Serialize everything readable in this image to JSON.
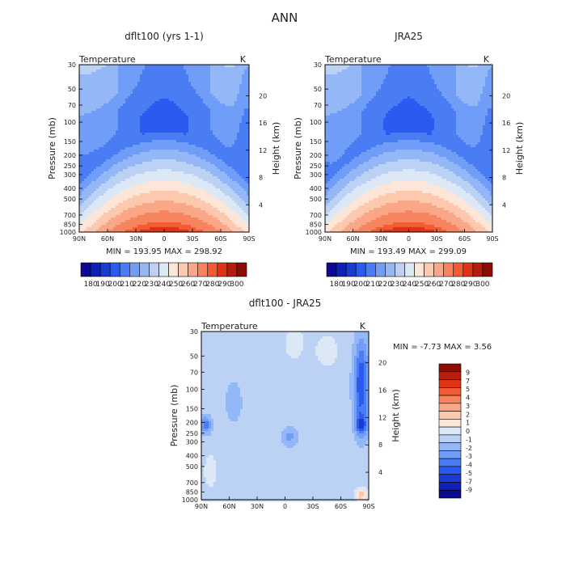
{
  "title": "ANN",
  "colors": {
    "temp_palette": [
      "#0a0a8c",
      "#1020b4",
      "#1a3ad2",
      "#2a5af0",
      "#4a7cf4",
      "#6f9df7",
      "#94b8f7",
      "#bcd2f5",
      "#dde8f7",
      "#fde6d8",
      "#fcc8ae",
      "#faa788",
      "#f7835f",
      "#f25b35",
      "#df3414",
      "#b51e0c",
      "#8c0c06"
    ],
    "diff_palette": [
      "#0a0a8c",
      "#1020b4",
      "#1a3ad2",
      "#2a5af0",
      "#4a7cf4",
      "#6f9df7",
      "#94b8f7",
      "#bcd2f5",
      "#dde8f7",
      "#fde6d8",
      "#fcc8ae",
      "#faa788",
      "#f7835f",
      "#f25b35",
      "#df3414",
      "#b51e0c",
      "#8c0c06"
    ]
  },
  "panels": [
    {
      "id": "model",
      "title": "dflt100 (yrs 1-1)",
      "subtitle": "Temperature",
      "units": "K",
      "left_axis_label": "Pressure (mb)",
      "right_axis_label": "Height (km)",
      "pressure_ticks": [
        "30",
        "50",
        "70",
        "100",
        "150",
        "200",
        "250",
        "300",
        "400",
        "500",
        "700",
        "850",
        "1000"
      ],
      "height_ticks": [
        "20",
        "16",
        "12",
        "8",
        "4"
      ],
      "lat_ticks": [
        "90N",
        "60N",
        "30N",
        "0",
        "30S",
        "60S",
        "90S"
      ],
      "stats": "MIN = 193.95   MAX = 298.92"
    },
    {
      "id": "obs",
      "title": "JRA25",
      "subtitle": "Temperature",
      "units": "K",
      "left_axis_label": "Pressure (mb)",
      "right_axis_label": "Height (km)",
      "pressure_ticks": [
        "30",
        "50",
        "70",
        "100",
        "150",
        "200",
        "250",
        "300",
        "400",
        "500",
        "700",
        "850",
        "1000"
      ],
      "height_ticks": [
        "20",
        "16",
        "12",
        "8",
        "4"
      ],
      "lat_ticks": [
        "90N",
        "60N",
        "30N",
        "0",
        "30S",
        "60S",
        "90S"
      ],
      "stats": "MIN = 193.49   MAX = 299.09"
    },
    {
      "id": "diff",
      "title": "dflt100 - JRA25",
      "subtitle": "Temperature",
      "units": "K",
      "left_axis_label": "Pressure (mb)",
      "right_axis_label": "Height (km)",
      "pressure_ticks": [
        "30",
        "50",
        "70",
        "100",
        "150",
        "200",
        "250",
        "300",
        "400",
        "500",
        "700",
        "850",
        "1000"
      ],
      "height_ticks": [
        "20",
        "16",
        "12",
        "8",
        "4"
      ],
      "lat_ticks": [
        "90N",
        "60N",
        "30N",
        "0",
        "30S",
        "60S",
        "90S"
      ],
      "stats": "MIN =  -7.73   MAX =    3.56"
    }
  ],
  "temp_colorbar_labels": [
    "180",
    "190",
    "200",
    "210",
    "220",
    "230",
    "240",
    "250",
    "260",
    "270",
    "280",
    "290",
    "300"
  ],
  "diff_colorbar_labels": [
    "9",
    "7",
    "5",
    "4",
    "3",
    "2",
    "1",
    "0",
    "-1",
    "-2",
    "-3",
    "-4",
    "-5",
    "-7",
    "-9"
  ],
  "chart_data": [
    {
      "type": "heatmap",
      "title": "dflt100 (yrs 1-1)",
      "xlabel": "",
      "ylabel": "Pressure (mb)",
      "x": [
        "90N",
        "60N",
        "30N",
        "0",
        "30S",
        "60S",
        "90S"
      ],
      "y": [
        1000,
        850,
        700,
        500,
        400,
        300,
        250,
        200,
        150,
        100,
        70,
        50,
        30
      ],
      "units": "K",
      "min": 193.95,
      "max": 298.92
    },
    {
      "type": "heatmap",
      "title": "JRA25",
      "xlabel": "",
      "ylabel": "Pressure (mb)",
      "x": [
        "90N",
        "60N",
        "30N",
        "0",
        "30S",
        "60S",
        "90S"
      ],
      "y": [
        1000,
        850,
        700,
        500,
        400,
        300,
        250,
        200,
        150,
        100,
        70,
        50,
        30
      ],
      "units": "K",
      "min": 193.49,
      "max": 299.09
    },
    {
      "type": "heatmap",
      "title": "dflt100 - JRA25",
      "xlabel": "",
      "ylabel": "Pressure (mb)",
      "x": [
        "90N",
        "60N",
        "30N",
        "0",
        "30S",
        "60S",
        "90S"
      ],
      "y": [
        1000,
        850,
        700,
        500,
        400,
        300,
        250,
        200,
        150,
        100,
        70,
        50,
        30
      ],
      "units": "K",
      "min": -7.73,
      "max": 3.56
    }
  ]
}
